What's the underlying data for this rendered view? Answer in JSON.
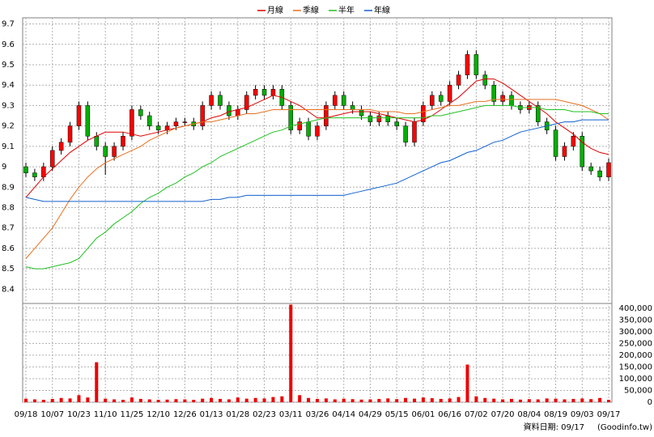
{
  "chart_data": {
    "type": "candlestick",
    "categories": [
      "09/18",
      null,
      null,
      "10/07",
      null,
      null,
      "10/23",
      null,
      null,
      "11/10",
      null,
      null,
      "11/25",
      null,
      null,
      "12/10",
      null,
      null,
      "12/26",
      null,
      null,
      "01/13",
      null,
      null,
      "01/28",
      null,
      null,
      "02/23",
      null,
      null,
      "03/11",
      null,
      null,
      "03/26",
      null,
      null,
      "04/14",
      null,
      null,
      "04/29",
      null,
      null,
      "05/15",
      null,
      null,
      "06/01",
      null,
      null,
      "06/16",
      null,
      null,
      "07/02",
      null,
      null,
      "07/20",
      null,
      null,
      "08/04",
      null,
      null,
      "08/19",
      null,
      null,
      "09/03",
      null,
      null,
      "09/17"
    ],
    "open": [
      9.0,
      8.97,
      8.95,
      9.0,
      9.08,
      9.12,
      9.2,
      9.3,
      9.15,
      9.1,
      9.05,
      9.1,
      9.15,
      9.28,
      9.25,
      9.2,
      9.18,
      9.2,
      9.22,
      9.22,
      9.2,
      9.3,
      9.35,
      9.3,
      9.25,
      9.28,
      9.35,
      9.38,
      9.35,
      9.38,
      9.3,
      9.18,
      9.22,
      9.15,
      9.2,
      9.3,
      9.35,
      9.3,
      9.28,
      9.25,
      9.22,
      9.25,
      9.22,
      9.2,
      9.12,
      9.22,
      9.3,
      9.35,
      9.32,
      9.4,
      9.45,
      9.55,
      9.45,
      9.4,
      9.32,
      9.35,
      9.3,
      9.28,
      9.3,
      9.22,
      9.18,
      9.05,
      9.1,
      9.15,
      9.0,
      8.98,
      8.95
    ],
    "high": [
      9.02,
      8.99,
      9.02,
      9.1,
      9.14,
      9.22,
      9.32,
      9.32,
      9.17,
      9.12,
      9.12,
      9.17,
      9.3,
      9.3,
      9.27,
      9.22,
      9.22,
      9.24,
      9.24,
      9.24,
      9.32,
      9.37,
      9.37,
      9.32,
      9.3,
      9.37,
      9.4,
      9.4,
      9.4,
      9.4,
      9.32,
      9.24,
      9.24,
      9.22,
      9.32,
      9.37,
      9.37,
      9.32,
      9.3,
      9.27,
      9.27,
      9.27,
      9.24,
      9.22,
      9.24,
      9.32,
      9.37,
      9.37,
      9.42,
      9.47,
      9.57,
      9.57,
      9.47,
      9.42,
      9.37,
      9.37,
      9.32,
      9.32,
      9.32,
      9.24,
      9.2,
      9.12,
      9.17,
      9.17,
      9.02,
      9.0,
      9.04
    ],
    "low": [
      8.95,
      8.93,
      8.93,
      8.98,
      9.06,
      9.1,
      9.18,
      9.13,
      9.08,
      8.96,
      9.03,
      9.08,
      9.13,
      9.23,
      9.18,
      9.16,
      9.16,
      9.18,
      9.2,
      9.18,
      9.18,
      9.28,
      9.28,
      9.23,
      9.23,
      9.26,
      9.33,
      9.33,
      9.33,
      9.28,
      9.16,
      9.16,
      9.13,
      9.13,
      9.18,
      9.28,
      9.28,
      9.26,
      9.23,
      9.2,
      9.2,
      9.2,
      9.18,
      9.1,
      9.1,
      9.2,
      9.28,
      9.3,
      9.3,
      9.38,
      9.43,
      9.43,
      9.38,
      9.3,
      9.3,
      9.28,
      9.26,
      9.26,
      9.2,
      9.16,
      9.03,
      9.03,
      9.08,
      8.98,
      8.96,
      8.93,
      8.93
    ],
    "close": [
      8.97,
      8.95,
      9.0,
      9.08,
      9.12,
      9.2,
      9.3,
      9.15,
      9.1,
      9.05,
      9.1,
      9.15,
      9.28,
      9.25,
      9.2,
      9.18,
      9.2,
      9.22,
      9.22,
      9.2,
      9.3,
      9.35,
      9.3,
      9.25,
      9.28,
      9.35,
      9.38,
      9.35,
      9.38,
      9.3,
      9.18,
      9.22,
      9.15,
      9.2,
      9.3,
      9.35,
      9.3,
      9.28,
      9.25,
      9.22,
      9.25,
      9.22,
      9.2,
      9.12,
      9.22,
      9.3,
      9.35,
      9.32,
      9.4,
      9.45,
      9.55,
      9.45,
      9.4,
      9.32,
      9.35,
      9.3,
      9.28,
      9.3,
      9.22,
      9.18,
      9.05,
      9.1,
      9.15,
      9.0,
      8.98,
      8.95,
      9.02
    ],
    "up_color": "#ff0000",
    "down_color": "#00b000",
    "ylim": [
      8.33,
      9.73
    ],
    "yticks": [
      8.4,
      8.5,
      8.6,
      8.7,
      8.8,
      8.9,
      9,
      9.1,
      9.2,
      9.3,
      9.4,
      9.5,
      9.6,
      9.7
    ],
    "grid": true,
    "legend_position": "top",
    "series": [
      {
        "name": "月線",
        "color": "#dd0000",
        "values": [
          8.85,
          8.9,
          8.95,
          8.99,
          9.03,
          9.07,
          9.1,
          9.13,
          9.15,
          9.17,
          9.17,
          9.17,
          9.16,
          9.15,
          9.16,
          9.17,
          9.18,
          9.19,
          9.2,
          9.21,
          9.22,
          9.24,
          9.25,
          9.27,
          9.28,
          9.29,
          9.31,
          9.33,
          9.35,
          9.34,
          9.32,
          9.3,
          9.27,
          9.24,
          9.24,
          9.25,
          9.26,
          9.27,
          9.27,
          9.27,
          9.26,
          9.25,
          9.24,
          9.23,
          9.22,
          9.23,
          9.25,
          9.28,
          9.31,
          9.34,
          9.38,
          9.42,
          9.43,
          9.43,
          9.41,
          9.38,
          9.35,
          9.32,
          9.29,
          9.26,
          9.22,
          9.19,
          9.16,
          9.12,
          9.09,
          9.07,
          9.06
        ]
      },
      {
        "name": "季線",
        "color": "#e87020",
        "values": [
          8.55,
          8.6,
          8.65,
          8.7,
          8.77,
          8.84,
          8.9,
          8.95,
          8.99,
          9.02,
          9.04,
          9.06,
          9.08,
          9.1,
          9.13,
          9.15,
          9.17,
          9.19,
          9.2,
          9.21,
          9.22,
          9.22,
          9.23,
          9.24,
          9.25,
          9.26,
          9.26,
          9.27,
          9.28,
          9.28,
          9.28,
          9.28,
          9.28,
          9.28,
          9.28,
          9.28,
          9.28,
          9.28,
          9.28,
          9.28,
          9.27,
          9.27,
          9.27,
          9.26,
          9.26,
          9.27,
          9.28,
          9.29,
          9.3,
          9.3,
          9.31,
          9.32,
          9.32,
          9.33,
          9.33,
          9.33,
          9.33,
          9.33,
          9.33,
          9.33,
          9.33,
          9.32,
          9.31,
          9.3,
          9.28,
          9.26,
          9.23
        ]
      },
      {
        "name": "半年",
        "color": "#20c020",
        "values": [
          8.51,
          8.5,
          8.5,
          8.51,
          8.52,
          8.53,
          8.55,
          8.6,
          8.65,
          8.68,
          8.72,
          8.75,
          8.78,
          8.82,
          8.85,
          8.87,
          8.9,
          8.92,
          8.95,
          8.97,
          9.0,
          9.02,
          9.05,
          9.07,
          9.09,
          9.11,
          9.13,
          9.15,
          9.17,
          9.18,
          9.2,
          9.21,
          9.22,
          9.23,
          9.24,
          9.24,
          9.24,
          9.24,
          9.24,
          9.24,
          9.24,
          9.24,
          9.24,
          9.24,
          9.24,
          9.24,
          9.25,
          9.25,
          9.26,
          9.27,
          9.28,
          9.29,
          9.3,
          9.3,
          9.3,
          9.3,
          9.29,
          9.29,
          9.29,
          9.28,
          9.28,
          9.28,
          9.27,
          9.27,
          9.27,
          9.26,
          9.26
        ]
      },
      {
        "name": "年線",
        "color": "#1060d0",
        "values": [
          8.85,
          8.84,
          8.83,
          8.83,
          8.83,
          8.83,
          8.83,
          8.83,
          8.83,
          8.83,
          8.83,
          8.83,
          8.83,
          8.83,
          8.83,
          8.83,
          8.83,
          8.83,
          8.83,
          8.83,
          8.83,
          8.84,
          8.84,
          8.85,
          8.85,
          8.86,
          8.86,
          8.86,
          8.86,
          8.86,
          8.86,
          8.86,
          8.86,
          8.86,
          8.86,
          8.86,
          8.86,
          8.87,
          8.88,
          8.89,
          8.9,
          8.91,
          8.92,
          8.94,
          8.96,
          8.98,
          9.0,
          9.02,
          9.03,
          9.05,
          9.07,
          9.08,
          9.1,
          9.12,
          9.13,
          9.15,
          9.17,
          9.18,
          9.19,
          9.2,
          9.21,
          9.22,
          9.22,
          9.23,
          9.23,
          9.23,
          9.23
        ]
      }
    ],
    "volume": {
      "color": "#ee0000",
      "values": [
        15000,
        12000,
        10000,
        14000,
        18000,
        16000,
        30000,
        20000,
        170000,
        15000,
        12000,
        10000,
        20000,
        14000,
        12000,
        10000,
        11000,
        13000,
        12000,
        10000,
        15000,
        18000,
        14000,
        12000,
        20000,
        15000,
        18000,
        16000,
        22000,
        25000,
        415000,
        30000,
        18000,
        14000,
        16000,
        12000,
        15000,
        13000,
        11000,
        12000,
        14000,
        16000,
        13000,
        18000,
        15000,
        20000,
        17000,
        14000,
        16000,
        22000,
        160000,
        25000,
        18000,
        15000,
        12000,
        14000,
        11000,
        13000,
        12000,
        16000,
        15000,
        12000,
        14000,
        16000,
        13000,
        18000,
        10000
      ],
      "ylim": [
        0,
        420000
      ],
      "yticks": [
        0,
        {
          "value": 50000,
          "label": "50,000"
        },
        {
          "value": 100000,
          "label": "100,000"
        },
        {
          "value": 150000,
          "label": "150,000"
        },
        {
          "value": 200000,
          "label": "200,000"
        },
        {
          "value": 250000,
          "label": "250,000"
        },
        {
          "value": 300000,
          "label": "300,000"
        },
        {
          "value": 350000,
          "label": "350,000"
        },
        {
          "value": 400000,
          "label": "400,000"
        }
      ]
    },
    "footnote": "資料日期: 09/17",
    "source": "(Goodinfo.tw)"
  }
}
